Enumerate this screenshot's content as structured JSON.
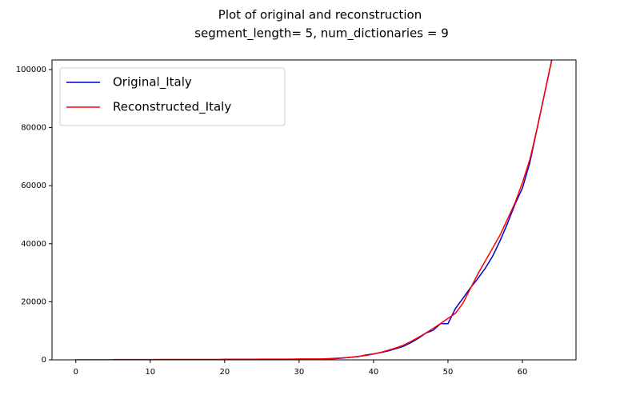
{
  "chart_data": {
    "type": "line",
    "title": [
      "Plot of original and reconstruction",
      "segment_length= 5, num_dictionaries = 9"
    ],
    "x": [
      0,
      1,
      2,
      3,
      4,
      5,
      6,
      7,
      8,
      9,
      10,
      11,
      12,
      13,
      14,
      15,
      16,
      17,
      18,
      19,
      20,
      21,
      22,
      23,
      24,
      25,
      26,
      27,
      28,
      29,
      30,
      31,
      32,
      33,
      34,
      35,
      36,
      37,
      38,
      39,
      40,
      41,
      42,
      43,
      44,
      45,
      46,
      47,
      48,
      49,
      50,
      51,
      52,
      53,
      54,
      55,
      56,
      57,
      58,
      59,
      60,
      61,
      62,
      63,
      64
    ],
    "series": [
      {
        "name": "Original_Italy",
        "color": "#0000cc",
        "values": [
          0,
          0,
          0,
          0,
          0,
          0,
          0,
          0,
          0,
          2,
          2,
          2,
          2,
          2,
          2,
          2,
          3,
          3,
          3,
          3,
          3,
          3,
          3,
          3,
          3,
          3,
          3,
          3,
          3,
          3,
          20,
          62,
          155,
          229,
          322,
          453,
          655,
          888,
          1128,
          1694,
          2036,
          2502,
          3089,
          3858,
          4636,
          5883,
          7375,
          9172,
          10149,
          12462,
          12462,
          17660,
          21157,
          24747,
          27980,
          31506,
          35713,
          41035,
          47021,
          53578,
          59138,
          68000,
          80000,
          92000,
          104000
        ]
      },
      {
        "name": "Reconstructed_Italy",
        "color": "#ff0000",
        "values": [
          null,
          null,
          null,
          null,
          null,
          100,
          100,
          100,
          100,
          100,
          100,
          120,
          120,
          120,
          120,
          150,
          150,
          150,
          150,
          150,
          200,
          200,
          200,
          200,
          200,
          250,
          250,
          250,
          250,
          250,
          300,
          300,
          300,
          300,
          400,
          550,
          700,
          900,
          1200,
          1500,
          2000,
          2600,
          3300,
          4100,
          5000,
          6300,
          7700,
          9200,
          10800,
          12500,
          14300,
          16000,
          19500,
          24500,
          29500,
          34000,
          38500,
          43000,
          48500,
          54000,
          61000,
          69000,
          80000,
          92000,
          104000
        ]
      }
    ],
    "xlim": [
      -3.2,
      67.2
    ],
    "ylim": [
      0,
      103300
    ],
    "xticks": [
      0,
      10,
      20,
      30,
      40,
      50,
      60
    ],
    "yticks": [
      0,
      20000,
      40000,
      60000,
      80000,
      100000
    ],
    "legend": "upper left",
    "grid": false
  }
}
